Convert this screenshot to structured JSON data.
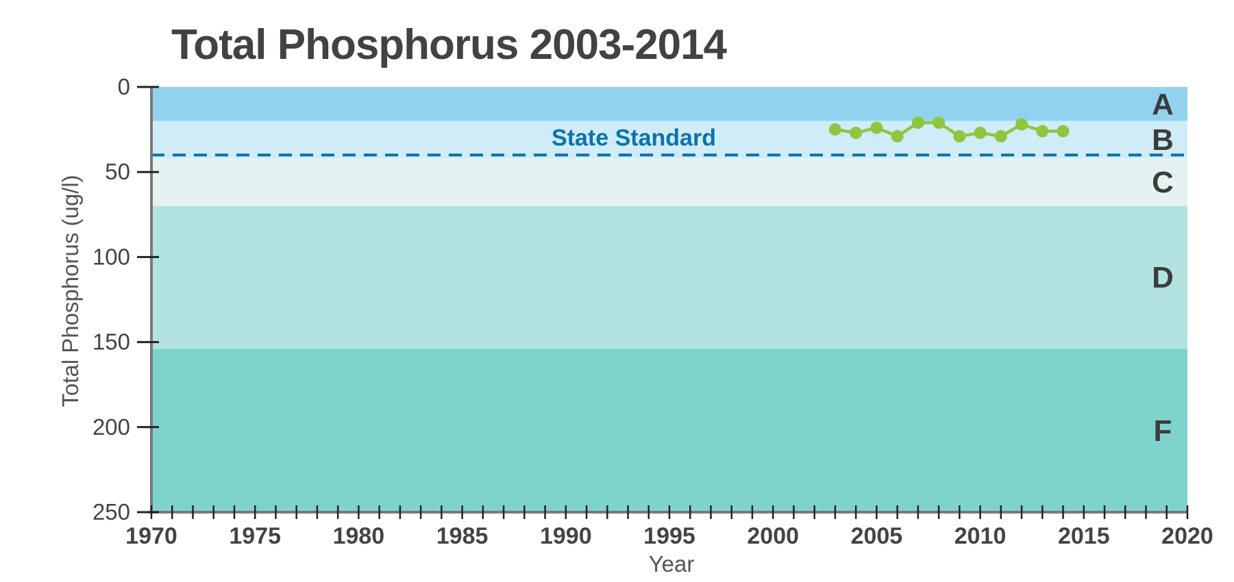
{
  "chart_data": {
    "type": "line",
    "title": "Total Phosphorus 2003-2014",
    "xlabel": "Year",
    "ylabel": "Total Phosphorus (ug/l)",
    "xlim": [
      1970,
      2020
    ],
    "ylim": [
      0,
      250
    ],
    "y_inverted": true,
    "x_ticks": [
      1970,
      1975,
      1980,
      1985,
      1990,
      1995,
      2000,
      2005,
      2010,
      2015,
      2020
    ],
    "x_minor_tick_step": 1,
    "y_ticks": [
      0,
      50,
      100,
      150,
      200,
      250
    ],
    "zones": [
      {
        "label": "A",
        "from": 0,
        "to": 20,
        "color": "#92d2ef"
      },
      {
        "label": "B",
        "from": 20,
        "to": 42,
        "color": "#cfecf8"
      },
      {
        "label": "C",
        "from": 42,
        "to": 70,
        "color": "#e4f3f2"
      },
      {
        "label": "D",
        "from": 70,
        "to": 154,
        "color": "#b2e3e0"
      },
      {
        "label": "F",
        "from": 154,
        "to": 250,
        "color": "#7fd3cd"
      }
    ],
    "reference_line": {
      "label": "State Standard",
      "value": 40,
      "color": "#0a6ea8",
      "style": "dashed"
    },
    "series": [
      {
        "color": "#8dc63f",
        "x": [
          2003,
          2004,
          2005,
          2006,
          2007,
          2008,
          2009,
          2010,
          2011,
          2012,
          2013,
          2014
        ],
        "values": [
          25,
          27,
          24,
          29,
          21,
          21,
          29,
          27,
          29,
          22,
          26,
          26
        ]
      }
    ]
  }
}
